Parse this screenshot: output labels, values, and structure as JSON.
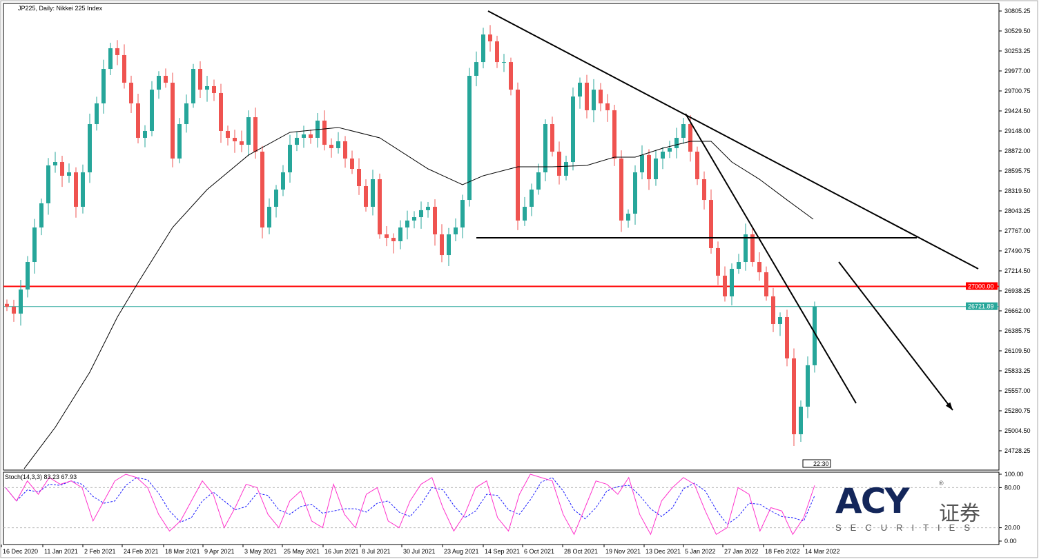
{
  "title": "JP225, Daily:  Nikkei 225 Index",
  "chart_data": {
    "type": "candlestick",
    "symbol": "JP225",
    "timeframe": "Daily",
    "instrument": "Nikkei 225 Index",
    "closes": [
      26719,
      26624,
      26957,
      27338,
      27814,
      28148,
      28672,
      28719,
      28529,
      28576,
      28100,
      28576,
      29243,
      29529,
      30005,
      30291,
      30196,
      29815,
      29529,
      29053,
      29148,
      29719,
      29910,
      29815,
      28767,
      29243,
      29529,
      30005,
      29719,
      29767,
      29672,
      29148,
      29053,
      29005,
      28957,
      29338,
      28862,
      27814,
      28100,
      28338,
      28576,
      28957,
      29053,
      29100,
      29053,
      29291,
      28957,
      28910,
      29005,
      28767,
      28624,
      28386,
      28100,
      28481,
      27719,
      27671,
      27624,
      27814,
      27910,
      27957,
      28053,
      28100,
      27719,
      27433,
      27719,
      27814,
      28195,
      29910,
      30100,
      30481,
      30386,
      30100,
      30100,
      29719,
      27910,
      28100,
      28338,
      28576,
      29243,
      28862,
      28529,
      28719,
      29624,
      29815,
      29434,
      29719,
      29529,
      29434,
      28767,
      27910,
      28005,
      28576,
      28815,
      28481,
      28767,
      28862,
      28910,
      29053,
      29243,
      28862,
      28481,
      28195,
      27529,
      27148,
      26862,
      27243,
      27338,
      27719,
      27338,
      27195,
      26862,
      26481,
      26576,
      26005,
      24957,
      25338,
      25910,
      26721.89
    ],
    "moving_average": [
      [
        2.5,
        24481
      ],
      [
        7,
        25052
      ],
      [
        12,
        25814
      ],
      [
        16,
        26576
      ],
      [
        19,
        27052
      ],
      [
        24,
        27814
      ],
      [
        29,
        28338
      ],
      [
        35,
        28815
      ],
      [
        41,
        29129
      ],
      [
        48,
        29196
      ],
      [
        54,
        29053
      ],
      [
        61,
        28624
      ],
      [
        66,
        28405
      ],
      [
        69,
        28529
      ],
      [
        74,
        28653
      ],
      [
        79,
        28653
      ],
      [
        84,
        28672
      ],
      [
        88,
        28786
      ],
      [
        91,
        28786
      ],
      [
        95,
        28910
      ],
      [
        99,
        29005
      ],
      [
        102,
        29005
      ],
      [
        105,
        28719
      ],
      [
        109,
        28481
      ],
      [
        113,
        28195
      ],
      [
        116.8,
        27929
      ]
    ],
    "trendlines": [
      {
        "name": "long-downtrend",
        "points": [
          [
            69.7,
            30805
          ],
          [
            140.7,
            27243
          ]
        ]
      },
      {
        "name": "steep-downtrend",
        "points": [
          [
            98.3,
            29386
          ],
          [
            123,
            25386
          ]
        ]
      },
      {
        "name": "support-line",
        "points": [
          [
            68,
            27671
          ],
          [
            131.8,
            27671
          ]
        ]
      }
    ],
    "arrow": {
      "from": [
        120.5,
        27338
      ],
      "to": [
        137,
        25290
      ]
    },
    "horizontal_level": {
      "price": 27000.0,
      "label": "27000.00",
      "color": "#ff0000"
    },
    "current_price": {
      "price": 26721.89,
      "label": "26721.89",
      "color": "#26a69a"
    },
    "yticks": [
      "30805.25",
      "30529.50",
      "30253.25",
      "29977.00",
      "29700.75",
      "29424.50",
      "29148.00",
      "28872.00",
      "28595.75",
      "28319.50",
      "28043.25",
      "27767.00",
      "27490.75",
      "27214.50",
      "26938.25",
      "26662.00",
      "26385.75",
      "26109.50",
      "25833.25",
      "25557.00",
      "25280.75",
      "25004.50",
      "24728.25"
    ],
    "ylim": [
      24728.25,
      30805.25
    ],
    "xticks": [
      {
        "label": "16 Dec 2020",
        "bar": -0.8
      },
      {
        "label": "11 Jan 2021",
        "bar": 5.2
      },
      {
        "label": "2 Feb 2021",
        "bar": 11
      },
      {
        "label": "24 Feb 2021",
        "bar": 16.7
      },
      {
        "label": "18 Mar 2021",
        "bar": 22.7
      },
      {
        "label": "9 Apr 2021",
        "bar": 28.4
      },
      {
        "label": "3 May 2021",
        "bar": 34.2
      },
      {
        "label": "25 May 2021",
        "bar": 39.9
      },
      {
        "label": "16 Jun 2021",
        "bar": 45.8
      },
      {
        "label": "8 Jul 2021",
        "bar": 51.2
      },
      {
        "label": "30 Jul 2021",
        "bar": 57.2
      },
      {
        "label": "23 Aug 2021",
        "bar": 63.1
      },
      {
        "label": "14 Sep 2021",
        "bar": 69
      },
      {
        "label": "6 Oct 2021",
        "bar": 74.7
      },
      {
        "label": "28 Oct 2021",
        "bar": 80.5
      },
      {
        "label": "19 Nov 2021",
        "bar": 86.5
      },
      {
        "label": "13 Dec 2021",
        "bar": 92.3
      },
      {
        "label": "5 Jan 2022",
        "bar": 98
      },
      {
        "label": "27 Jan 2022",
        "bar": 103.7
      },
      {
        "label": "18 Feb 2022",
        "bar": 109.6
      },
      {
        "label": "14 Mar 2022",
        "bar": 115.4
      }
    ],
    "time_marker": "22:30",
    "colors": {
      "bull": "#26a69a",
      "bear": "#ef5350",
      "ma": "#000000"
    },
    "stochastic": {
      "label": "Stoch(14,3,3) 83.23 67.93",
      "k": [
        80,
        60,
        90,
        70,
        95,
        85,
        90,
        80,
        30,
        60,
        90,
        100,
        95,
        80,
        40,
        15,
        30,
        60,
        90,
        70,
        20,
        50,
        85,
        80,
        40,
        20,
        60,
        75,
        30,
        20,
        85,
        40,
        20,
        70,
        80,
        30,
        20,
        60,
        85,
        95,
        50,
        15,
        40,
        80,
        90,
        35,
        15,
        70,
        100,
        95,
        90,
        40,
        10,
        50,
        90,
        85,
        70,
        95,
        40,
        10,
        60,
        80,
        95,
        85,
        45,
        10,
        20,
        80,
        70,
        15,
        50,
        45,
        10,
        35,
        83.23
      ],
      "levels": [
        20,
        80
      ],
      "yticks": [
        "100.00",
        "80.00",
        "20.00",
        "0.00"
      ],
      "ylim": [
        0,
        100
      ]
    }
  },
  "logo": {
    "brand": "ACY",
    "cn": "证券",
    "sub": "SECURITIES",
    "reg": "®"
  }
}
